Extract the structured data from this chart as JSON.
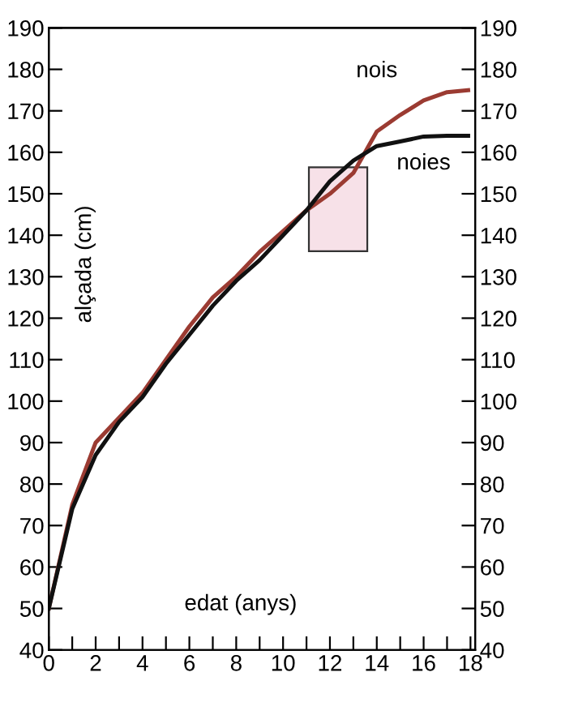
{
  "chart_data": {
    "type": "line",
    "xlabel": "edat (anys)",
    "ylabel": "alçada (cm)",
    "x": [
      0,
      1,
      2,
      3,
      4,
      5,
      6,
      7,
      8,
      9,
      10,
      11,
      12,
      13,
      14,
      15,
      16,
      17,
      17.9
    ],
    "series": [
      {
        "name": "nois",
        "color": "#9b3b32",
        "values": [
          50,
          75,
          90,
          96,
          102,
          110,
          118,
          125,
          130,
          136,
          141,
          146,
          150,
          155,
          165,
          169,
          172.5,
          174.5,
          175
        ]
      },
      {
        "name": "noies",
        "color": "#111111",
        "values": [
          50,
          74,
          87,
          95,
          101,
          109,
          116,
          123,
          129,
          134,
          140,
          146,
          153,
          158,
          161.5,
          162.6,
          163.8,
          164,
          164
        ]
      }
    ],
    "xlim": [
      0,
      18.2
    ],
    "ylim": [
      40,
      190
    ],
    "xticks": [
      0,
      {
        "value": 1,
        "label": null
      },
      2,
      {
        "value": 3,
        "label": null
      },
      4,
      {
        "value": 5,
        "label": null
      },
      6,
      {
        "value": 7,
        "label": null
      },
      8,
      {
        "value": 9,
        "label": null
      },
      10,
      {
        "value": 11,
        "label": null
      },
      12,
      {
        "value": 13,
        "label": null
      },
      14,
      {
        "value": 15,
        "label": null
      },
      16,
      {
        "value": 17,
        "label": null
      },
      18
    ],
    "yticks": [
      40,
      50,
      60,
      70,
      80,
      90,
      100,
      110,
      120,
      130,
      140,
      150,
      160,
      170,
      180,
      190
    ],
    "y2lim": [
      40,
      190
    ],
    "y2ticks": [
      40,
      50,
      60,
      70,
      80,
      90,
      100,
      110,
      120,
      130,
      140,
      150,
      160,
      170,
      180,
      190
    ],
    "grid": false,
    "legend": false,
    "marker": "none",
    "line_style": "solid"
  }
}
